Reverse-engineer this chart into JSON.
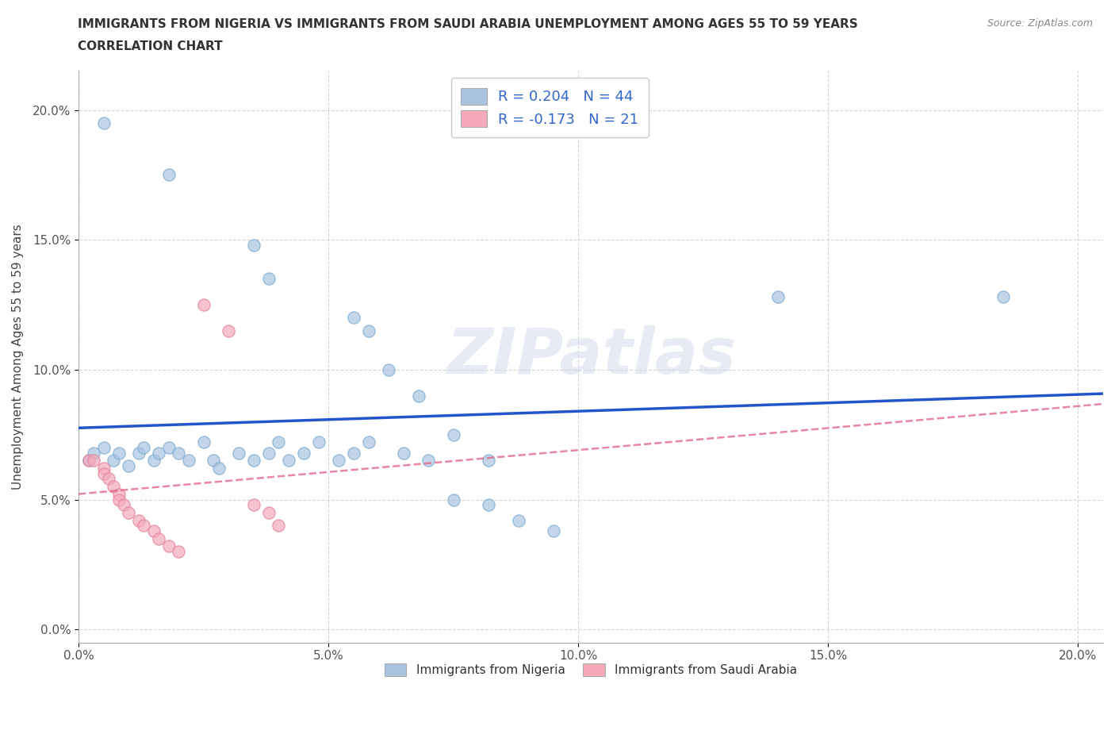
{
  "title_line1": "IMMIGRANTS FROM NIGERIA VS IMMIGRANTS FROM SAUDI ARABIA UNEMPLOYMENT AMONG AGES 55 TO 59 YEARS",
  "title_line2": "CORRELATION CHART",
  "source_text": "Source: ZipAtlas.com",
  "ylabel": "Unemployment Among Ages 55 to 59 years",
  "xlim": [
    0.0,
    0.205
  ],
  "ylim": [
    -0.005,
    0.215
  ],
  "xtick_vals": [
    0.0,
    0.05,
    0.1,
    0.15,
    0.2
  ],
  "xtick_labels": [
    "0.0%",
    "5.0%",
    "10.0%",
    "15.0%",
    "20.0%"
  ],
  "ytick_vals": [
    0.0,
    0.05,
    0.1,
    0.15,
    0.2
  ],
  "ytick_labels": [
    "0.0%",
    "5.0%",
    "10.0%",
    "15.0%",
    "20.0%"
  ],
  "nigeria_color": "#aac4e0",
  "nigeria_edge": "#7aaad0",
  "saudi_color": "#f4aaba",
  "saudi_edge": "#e080a0",
  "nigeria_R": 0.204,
  "nigeria_N": 44,
  "saudi_R": -0.173,
  "saudi_N": 21,
  "watermark": "ZIPatlas",
  "legend_entries": [
    "Immigrants from Nigeria",
    "Immigrants from Saudi Arabia"
  ],
  "nigeria_x": [
    0.005,
    0.018,
    0.035,
    0.038,
    0.055,
    0.058,
    0.062,
    0.068,
    0.075,
    0.082,
    0.002,
    0.003,
    0.005,
    0.007,
    0.008,
    0.01,
    0.012,
    0.013,
    0.015,
    0.016,
    0.018,
    0.02,
    0.022,
    0.025,
    0.027,
    0.028,
    0.032,
    0.035,
    0.038,
    0.04,
    0.042,
    0.045,
    0.048,
    0.052,
    0.055,
    0.058,
    0.065,
    0.07,
    0.075,
    0.082,
    0.088,
    0.095,
    0.14,
    0.185
  ],
  "nigeria_y": [
    0.195,
    0.175,
    0.148,
    0.135,
    0.12,
    0.115,
    0.1,
    0.09,
    0.075,
    0.065,
    0.065,
    0.068,
    0.07,
    0.065,
    0.068,
    0.063,
    0.068,
    0.07,
    0.065,
    0.068,
    0.07,
    0.068,
    0.065,
    0.072,
    0.065,
    0.062,
    0.068,
    0.065,
    0.068,
    0.072,
    0.065,
    0.068,
    0.072,
    0.065,
    0.068,
    0.072,
    0.068,
    0.065,
    0.05,
    0.048,
    0.042,
    0.038,
    0.128,
    0.128
  ],
  "saudi_x": [
    0.002,
    0.003,
    0.005,
    0.005,
    0.006,
    0.007,
    0.008,
    0.008,
    0.009,
    0.01,
    0.012,
    0.013,
    0.015,
    0.016,
    0.018,
    0.02,
    0.025,
    0.03,
    0.035,
    0.038,
    0.04
  ],
  "saudi_y": [
    0.065,
    0.065,
    0.062,
    0.06,
    0.058,
    0.055,
    0.052,
    0.05,
    0.048,
    0.045,
    0.042,
    0.04,
    0.038,
    0.035,
    0.032,
    0.03,
    0.125,
    0.115,
    0.048,
    0.045,
    0.04
  ]
}
